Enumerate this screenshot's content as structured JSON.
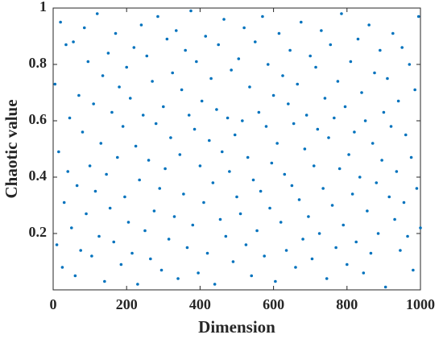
{
  "chart_data": {
    "type": "scatter",
    "x_label": "Dimension",
    "y_label": "Chaotic value",
    "color": "#0072bd",
    "xlim": [
      0,
      1000
    ],
    "xticks": [
      0,
      200,
      400,
      600,
      800,
      1000
    ],
    "ylim": [
      0,
      1
    ],
    "yticks": [
      0.2,
      0.4,
      0.6,
      0.8,
      1
    ],
    "x": [
      5,
      10,
      15,
      20,
      25,
      30,
      35,
      40,
      45,
      50,
      55,
      60,
      65,
      70,
      75,
      80,
      85,
      90,
      95,
      100,
      105,
      110,
      115,
      120,
      125,
      130,
      135,
      140,
      145,
      150,
      155,
      160,
      165,
      170,
      175,
      180,
      185,
      190,
      195,
      200,
      205,
      210,
      215,
      220,
      225,
      230,
      235,
      240,
      245,
      250,
      255,
      260,
      265,
      270,
      275,
      280,
      285,
      290,
      295,
      300,
      305,
      310,
      315,
      320,
      325,
      330,
      335,
      340,
      345,
      350,
      355,
      360,
      365,
      370,
      375,
      380,
      385,
      390,
      395,
      400,
      405,
      410,
      415,
      420,
      425,
      430,
      435,
      440,
      445,
      450,
      455,
      460,
      465,
      470,
      475,
      480,
      485,
      490,
      495,
      500,
      505,
      510,
      515,
      520,
      525,
      530,
      535,
      540,
      545,
      550,
      555,
      560,
      565,
      570,
      575,
      580,
      585,
      590,
      595,
      600,
      605,
      610,
      615,
      620,
      625,
      630,
      635,
      640,
      645,
      650,
      655,
      660,
      665,
      670,
      675,
      680,
      685,
      690,
      695,
      700,
      705,
      710,
      715,
      720,
      725,
      730,
      735,
      740,
      745,
      750,
      755,
      760,
      765,
      770,
      775,
      780,
      785,
      790,
      795,
      800,
      805,
      810,
      815,
      820,
      825,
      830,
      835,
      840,
      845,
      850,
      855,
      860,
      865,
      870,
      875,
      880,
      885,
      890,
      895,
      900,
      905,
      910,
      915,
      920,
      925,
      930,
      935,
      940,
      945,
      950,
      955,
      960,
      965,
      970,
      975,
      980,
      985,
      990,
      995,
      1000
    ],
    "values": [
      0.73,
      0.16,
      0.49,
      0.95,
      0.08,
      0.31,
      0.87,
      0.42,
      0.61,
      0.22,
      0.88,
      0.05,
      0.37,
      0.69,
      0.14,
      0.56,
      0.93,
      0.27,
      0.81,
      0.44,
      0.12,
      0.66,
      0.35,
      0.98,
      0.19,
      0.52,
      0.76,
      0.03,
      0.41,
      0.84,
      0.29,
      0.63,
      0.17,
      0.91,
      0.47,
      0.72,
      0.09,
      0.58,
      0.33,
      0.79,
      0.24,
      0.68,
      0.13,
      0.86,
      0.51,
      0.02,
      0.39,
      0.94,
      0.62,
      0.21,
      0.83,
      0.46,
      0.11,
      0.74,
      0.28,
      0.59,
      0.97,
      0.36,
      0.07,
      0.65,
      0.43,
      0.89,
      0.18,
      0.54,
      0.77,
      0.26,
      0.92,
      0.04,
      0.48,
      0.71,
      0.34,
      0.85,
      0.15,
      0.62,
      0.99,
      0.23,
      0.57,
      0.81,
      0.06,
      0.44,
      0.67,
      0.31,
      0.9,
      0.13,
      0.53,
      0.75,
      0.38,
      0.02,
      0.64,
      0.87,
      0.25,
      0.49,
      0.96,
      0.19,
      0.61,
      0.42,
      0.78,
      0.1,
      0.55,
      0.33,
      0.82,
      0.27,
      0.6,
      0.93,
      0.16,
      0.47,
      0.72,
      0.05,
      0.39,
      0.88,
      0.21,
      0.63,
      0.35,
      0.97,
      0.12,
      0.58,
      0.8,
      0.29,
      0.45,
      0.69,
      0.03,
      0.52,
      0.91,
      0.24,
      0.76,
      0.41,
      0.14,
      0.66,
      0.85,
      0.37,
      0.59,
      0.08,
      0.73,
      0.32,
      0.95,
      0.18,
      0.5,
      0.62,
      0.26,
      0.83,
      0.11,
      0.44,
      0.79,
      0.57,
      0.2,
      0.92,
      0.36,
      0.68,
      0.04,
      0.54,
      0.87,
      0.3,
      0.61,
      0.15,
      0.74,
      0.43,
      0.98,
      0.23,
      0.65,
      0.09,
      0.48,
      0.81,
      0.34,
      0.56,
      0.17,
      0.89,
      0.4,
      0.7,
      0.06,
      0.6,
      0.28,
      0.94,
      0.13,
      0.52,
      0.77,
      0.38,
      0.2,
      0.85,
      0.46,
      0.63,
      0.01,
      0.75,
      0.33,
      0.58,
      0.91,
      0.25,
      0.42,
      0.67,
      0.14,
      0.86,
      0.31,
      0.55,
      0.19,
      0.8,
      0.47,
      0.07,
      0.71,
      0.36,
      0.97,
      0.22
    ]
  }
}
